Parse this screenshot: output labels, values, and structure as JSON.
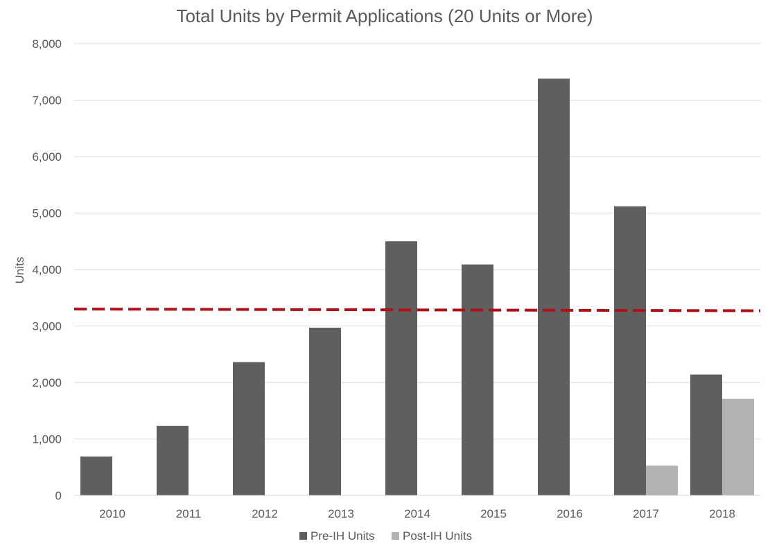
{
  "chart_data": {
    "type": "bar",
    "title": "Total Units by Permit Applications (20 Units or More)",
    "xlabel": "",
    "ylabel": "Units",
    "ylim": [
      0,
      8000
    ],
    "yticks": [
      0,
      1000,
      2000,
      3000,
      4000,
      5000,
      6000,
      7000,
      8000
    ],
    "ytick_labels": [
      "0",
      "1,000",
      "2,000",
      "3,000",
      "4,000",
      "5,000",
      "6,000",
      "7,000",
      "8,000"
    ],
    "grid": true,
    "legend_position": "bottom",
    "categories": [
      "2010",
      "2011",
      "2012",
      "2013",
      "2014",
      "2015",
      "2016",
      "2017",
      "2018"
    ],
    "series": [
      {
        "name": "Pre-IH Units",
        "color": "#5f5f5f",
        "values": [
          690,
          1230,
          2360,
          2970,
          4500,
          4090,
          7380,
          5120,
          2140
        ]
      },
      {
        "name": "Post-IH Units",
        "color": "#b3b3b3",
        "values": [
          0,
          0,
          0,
          0,
          0,
          0,
          0,
          530,
          1710
        ]
      }
    ],
    "reference_line": {
      "style": "dashed",
      "color": "#b01116",
      "y_start": 3300,
      "y_end": 3270
    }
  }
}
